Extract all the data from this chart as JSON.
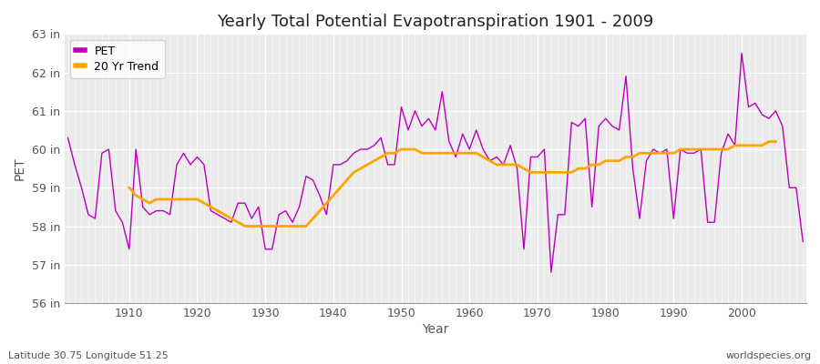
{
  "title": "Yearly Total Potential Evapotranspiration 1901 - 2009",
  "xlabel": "Year",
  "ylabel": "PET",
  "lat_lon_label": "Latitude 30.75 Longitude 51.25",
  "website_label": "worldspecies.org",
  "pet_color": "#BB00BB",
  "trend_color": "#FFA500",
  "fig_background_color": "#FFFFFF",
  "plot_background_color": "#EBEBEB",
  "grid_color": "#FFFFFF",
  "years": [
    1901,
    1902,
    1903,
    1904,
    1905,
    1906,
    1907,
    1908,
    1909,
    1910,
    1911,
    1912,
    1913,
    1914,
    1915,
    1916,
    1917,
    1918,
    1919,
    1920,
    1921,
    1922,
    1923,
    1924,
    1925,
    1926,
    1927,
    1928,
    1929,
    1930,
    1931,
    1932,
    1933,
    1934,
    1935,
    1936,
    1937,
    1938,
    1939,
    1940,
    1941,
    1942,
    1943,
    1944,
    1945,
    1946,
    1947,
    1948,
    1949,
    1950,
    1951,
    1952,
    1953,
    1954,
    1955,
    1956,
    1957,
    1958,
    1959,
    1960,
    1961,
    1962,
    1963,
    1964,
    1965,
    1966,
    1967,
    1968,
    1969,
    1970,
    1971,
    1972,
    1973,
    1974,
    1975,
    1976,
    1977,
    1978,
    1979,
    1980,
    1981,
    1982,
    1983,
    1984,
    1985,
    1986,
    1987,
    1988,
    1989,
    1990,
    1991,
    1992,
    1993,
    1994,
    1995,
    1996,
    1997,
    1998,
    1999,
    2000,
    2001,
    2002,
    2003,
    2004,
    2005,
    2006,
    2007,
    2008,
    2009
  ],
  "pet_values": [
    60.3,
    59.6,
    59.0,
    58.3,
    58.2,
    59.9,
    60.0,
    58.4,
    58.1,
    57.4,
    60.0,
    58.5,
    58.3,
    58.4,
    58.4,
    58.3,
    59.6,
    59.9,
    59.6,
    59.8,
    59.6,
    58.4,
    58.3,
    58.2,
    58.1,
    58.6,
    58.6,
    58.2,
    58.5,
    57.4,
    57.4,
    58.3,
    58.4,
    58.1,
    58.5,
    59.3,
    59.2,
    58.8,
    58.3,
    59.6,
    59.6,
    59.7,
    59.9,
    60.0,
    60.0,
    60.1,
    60.3,
    59.6,
    59.6,
    61.1,
    60.5,
    61.0,
    60.6,
    60.8,
    60.5,
    61.5,
    60.2,
    59.8,
    60.4,
    60.0,
    60.5,
    60.0,
    59.7,
    59.8,
    59.6,
    60.1,
    59.5,
    57.4,
    59.8,
    59.8,
    60.0,
    56.8,
    58.3,
    58.3,
    60.7,
    60.6,
    60.8,
    58.5,
    60.6,
    60.8,
    60.6,
    60.5,
    61.9,
    59.5,
    58.2,
    59.7,
    60.0,
    59.9,
    60.0,
    58.2,
    60.0,
    59.9,
    59.9,
    60.0,
    58.1,
    58.1,
    59.9,
    60.4,
    60.1,
    62.5,
    61.1,
    61.2,
    60.9,
    60.8,
    61.0,
    60.6,
    59.0,
    59.0,
    57.6
  ],
  "trend_values": [
    null,
    null,
    null,
    null,
    null,
    null,
    null,
    null,
    null,
    59.0,
    58.8,
    58.7,
    58.6,
    58.7,
    58.7,
    58.7,
    58.7,
    58.7,
    58.7,
    58.7,
    58.6,
    58.5,
    58.4,
    58.3,
    58.2,
    58.1,
    58.0,
    58.0,
    58.0,
    58.0,
    58.0,
    58.0,
    58.0,
    58.0,
    58.0,
    58.0,
    58.2,
    58.4,
    58.6,
    58.8,
    59.0,
    59.2,
    59.4,
    59.5,
    59.6,
    59.7,
    59.8,
    59.9,
    59.9,
    60.0,
    60.0,
    60.0,
    59.9,
    59.9,
    59.9,
    59.9,
    59.9,
    59.9,
    59.9,
    59.9,
    59.9,
    59.8,
    59.7,
    59.6,
    59.6,
    59.6,
    59.6,
    59.5,
    59.4,
    59.4,
    59.4,
    59.4,
    59.4,
    59.4,
    59.4,
    59.5,
    59.5,
    59.6,
    59.6,
    59.7,
    59.7,
    59.7,
    59.8,
    59.8,
    59.9,
    59.9,
    59.9,
    59.9,
    59.9,
    59.9,
    60.0,
    60.0,
    60.0,
    60.0,
    60.0,
    60.0,
    60.0,
    60.0,
    60.1,
    60.1,
    60.1,
    60.1,
    60.1,
    60.2,
    60.2,
    null,
    null,
    null,
    null
  ],
  "ylim": [
    56.0,
    63.0
  ],
  "yticks": [
    56,
    57,
    58,
    59,
    60,
    61,
    62,
    63
  ],
  "ytick_labels": [
    "56 in",
    "57 in",
    "58 in",
    "59 in",
    "60 in",
    "61 in",
    "62 in",
    "63 in"
  ],
  "xticks": [
    1910,
    1920,
    1930,
    1940,
    1950,
    1960,
    1970,
    1980,
    1990,
    2000
  ],
  "figsize": [
    9.0,
    4.0
  ],
  "dpi": 100
}
